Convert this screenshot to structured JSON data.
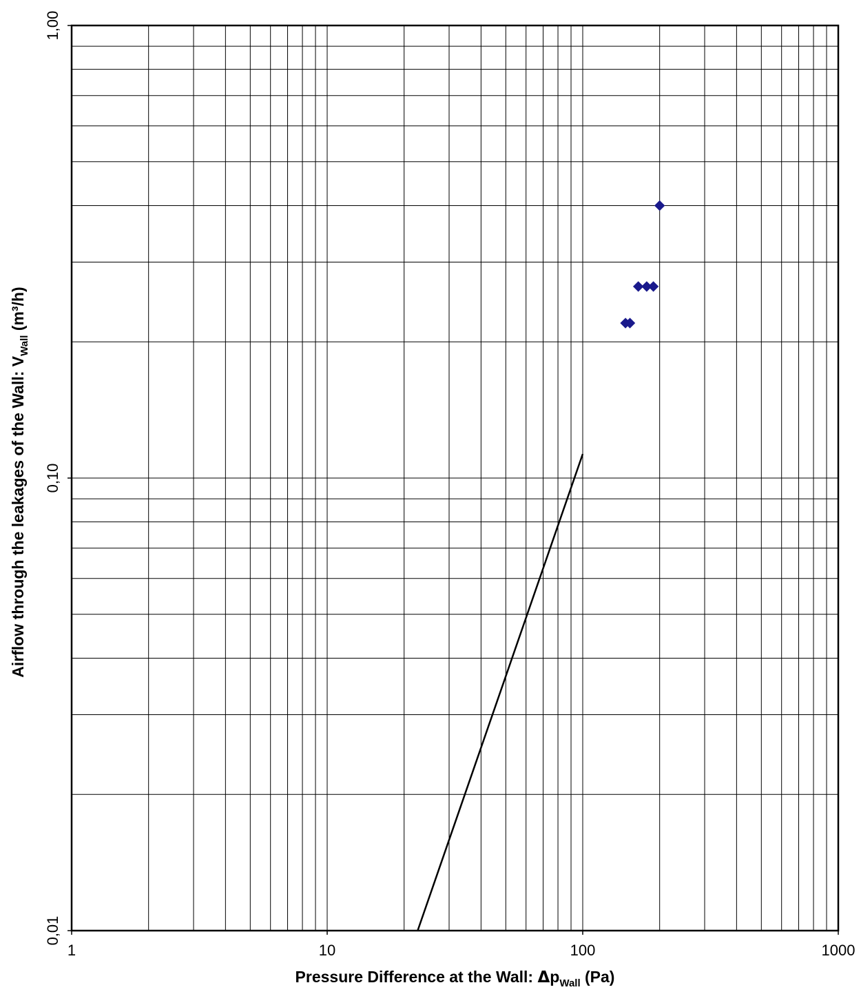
{
  "chart_data": {
    "type": "scatter",
    "x_scale": "log",
    "y_scale": "log",
    "xlim": [
      1,
      1000
    ],
    "ylim": [
      0.01,
      1.0
    ],
    "grid": true,
    "legend": "none",
    "x_ticks": [
      "1",
      "10",
      "100",
      "1000"
    ],
    "y_ticks": [
      "0,01",
      "0,10",
      "1,00"
    ],
    "xlabel": {
      "pre": "Pressure Difference at the Wall: ",
      "delta": "Δ",
      "sym": "p",
      "sub": "Wall",
      "post": " (Pa)"
    },
    "ylabel": {
      "pre": "Airflow through the leakages of the Wall: V",
      "sub": "Wall",
      "post": " (m³/h)"
    },
    "series": [
      {
        "kind": "markers",
        "marker": "diamond",
        "color": "#1a1a8c",
        "points": [
          {
            "x": 147,
            "y": 0.22
          },
          {
            "x": 153,
            "y": 0.22
          },
          {
            "x": 165,
            "y": 0.265
          },
          {
            "x": 178,
            "y": 0.265
          },
          {
            "x": 189,
            "y": 0.265
          },
          {
            "x": 200,
            "y": 0.4
          }
        ]
      },
      {
        "kind": "line",
        "color": "#000000",
        "points": [
          {
            "x": 22.6,
            "y": 0.01
          },
          {
            "x": 100,
            "y": 0.113
          }
        ]
      }
    ]
  }
}
